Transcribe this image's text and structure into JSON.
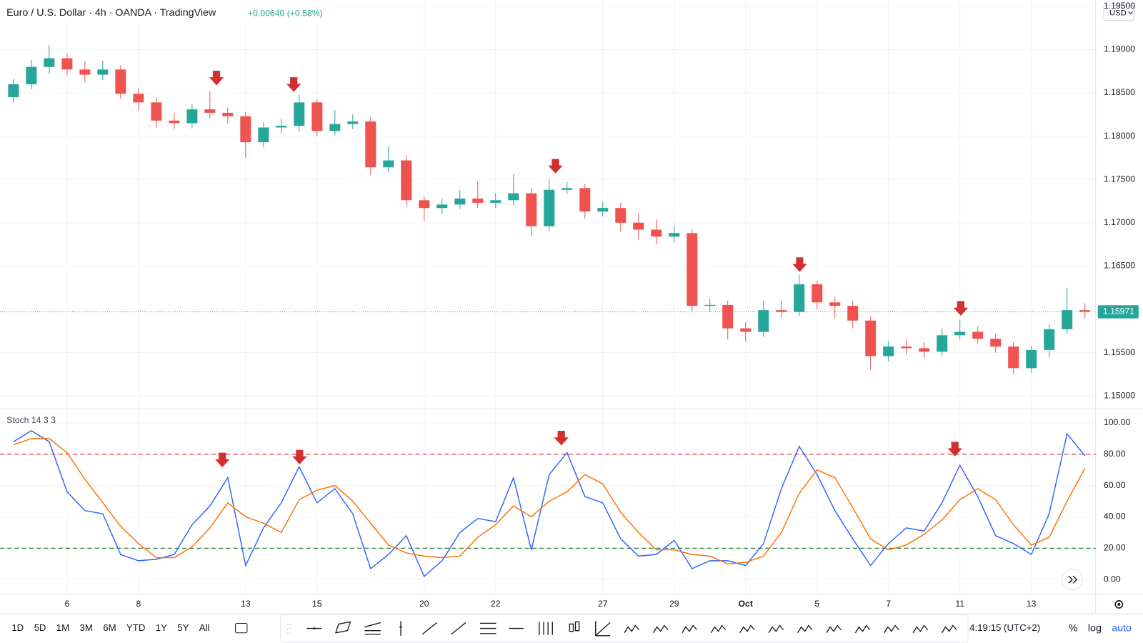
{
  "chart_data": [
    {
      "type": "candlestick",
      "title": "Euro / U.S. Dollar · 4h · OANDA · TradingView",
      "subtitle": "+0.00640 (+0.58%)",
      "currency": "USD",
      "up_color": "#26a69a",
      "down_color": "#ef5350",
      "xlim": [
        -0.755,
        60.6
      ],
      "xticks": [
        {
          "value": 3,
          "label": "6"
        },
        {
          "value": 7,
          "label": "8"
        },
        {
          "value": 13,
          "label": "13"
        },
        {
          "value": 17,
          "label": "15"
        },
        {
          "value": 23,
          "label": "20"
        },
        {
          "value": 27,
          "label": "22"
        },
        {
          "value": 33,
          "label": "27"
        },
        {
          "value": 37,
          "label": "29"
        },
        {
          "value": 41,
          "label": "Oct"
        },
        {
          "value": 45,
          "label": "5"
        },
        {
          "value": 49,
          "label": "7"
        },
        {
          "value": 53,
          "label": "11"
        },
        {
          "value": 57,
          "label": "13"
        }
      ],
      "ylim": [
        1.14857,
        1.19573
      ],
      "yticks": [
        {
          "value": 1.15,
          "label": "1.15000"
        },
        {
          "value": 1.155,
          "label": "1.15500"
        },
        {
          "value": 1.16,
          "label": "1.16000"
        },
        {
          "value": 1.165,
          "label": "1.16500"
        },
        {
          "value": 1.17,
          "label": "1.17000"
        },
        {
          "value": 1.175,
          "label": "1.17500"
        },
        {
          "value": 1.18,
          "label": "1.18000"
        },
        {
          "value": 1.185,
          "label": "1.18500"
        },
        {
          "value": 1.19,
          "label": "1.19000"
        },
        {
          "value": 1.195,
          "label": "1.19500"
        }
      ],
      "last_price": 1.15971,
      "open": [
        1.1845,
        1.186,
        1.188,
        1.189,
        1.1877,
        1.1871,
        1.1877,
        1.1849,
        1.1839,
        1.1818,
        1.1815,
        1.1831,
        1.1827,
        1.1823,
        1.1793,
        1.181,
        1.1812,
        1.1839,
        1.1806,
        1.1814,
        1.1817,
        1.1764,
        1.1772,
        1.1726,
        1.1717,
        1.1721,
        1.1728,
        1.1723,
        1.1726,
        1.1734,
        1.1696,
        1.1738,
        1.174,
        1.1713,
        1.1717,
        1.17,
        1.1692,
        1.1684,
        1.1688,
        1.1604,
        1.1605,
        1.1578,
        1.1574,
        1.1599,
        1.1597,
        1.1629,
        1.1608,
        1.1604,
        1.1587,
        1.1546,
        1.1557,
        1.1555,
        1.1551,
        1.157,
        1.1574,
        1.1566,
        1.1557,
        1.1532,
        1.1553,
        1.1577,
        1.1599
      ],
      "high": [
        1.1866,
        1.1888,
        1.1905,
        1.1896,
        1.1887,
        1.1887,
        1.1882,
        1.1855,
        1.1845,
        1.1827,
        1.1837,
        1.1852,
        1.1833,
        1.1828,
        1.1816,
        1.182,
        1.1848,
        1.1843,
        1.183,
        1.1825,
        1.1822,
        1.1788,
        1.1778,
        1.173,
        1.1728,
        1.1738,
        1.1748,
        1.1734,
        1.1756,
        1.174,
        1.175,
        1.1747,
        1.1745,
        1.1724,
        1.1723,
        1.171,
        1.1704,
        1.1696,
        1.1692,
        1.1612,
        1.161,
        1.1585,
        1.161,
        1.161,
        1.164,
        1.1633,
        1.1614,
        1.161,
        1.1592,
        1.1563,
        1.1566,
        1.1562,
        1.1578,
        1.1588,
        1.158,
        1.1572,
        1.1562,
        1.1558,
        1.1582,
        1.1625,
        1.1607
      ],
      "low": [
        1.1839,
        1.1854,
        1.1872,
        1.187,
        1.1862,
        1.1865,
        1.1843,
        1.183,
        1.181,
        1.1808,
        1.1809,
        1.182,
        1.1815,
        1.1775,
        1.1787,
        1.1803,
        1.1805,
        1.18,
        1.1801,
        1.1808,
        1.1755,
        1.1758,
        1.172,
        1.1702,
        1.171,
        1.1716,
        1.1717,
        1.1717,
        1.172,
        1.1685,
        1.169,
        1.1733,
        1.1705,
        1.1707,
        1.169,
        1.168,
        1.1675,
        1.1677,
        1.1598,
        1.1597,
        1.1565,
        1.1563,
        1.1568,
        1.159,
        1.1592,
        1.16,
        1.159,
        1.1578,
        1.153,
        1.154,
        1.1548,
        1.1544,
        1.1546,
        1.1565,
        1.156,
        1.155,
        1.1525,
        1.1527,
        1.1545,
        1.1572,
        1.159
      ],
      "close": [
        1.186,
        1.188,
        1.189,
        1.1877,
        1.1871,
        1.1877,
        1.1849,
        1.1839,
        1.1818,
        1.1815,
        1.1831,
        1.1827,
        1.1823,
        1.1793,
        1.181,
        1.1812,
        1.1839,
        1.1806,
        1.1814,
        1.1817,
        1.1764,
        1.1772,
        1.1726,
        1.1717,
        1.1721,
        1.1728,
        1.1723,
        1.1726,
        1.1734,
        1.1696,
        1.1738,
        1.174,
        1.1713,
        1.1717,
        1.17,
        1.1692,
        1.1684,
        1.1688,
        1.1604,
        1.1605,
        1.1578,
        1.1574,
        1.1599,
        1.1597,
        1.1629,
        1.1608,
        1.1604,
        1.1587,
        1.1546,
        1.1557,
        1.1555,
        1.1551,
        1.157,
        1.1574,
        1.1566,
        1.1557,
        1.1532,
        1.1553,
        1.1577,
        1.1599,
        1.15971
      ]
    },
    {
      "type": "line",
      "title": "Stoch 14 3 3",
      "xlim": [
        -0.755,
        60.6
      ],
      "ylim": [
        -9.3,
        108.4
      ],
      "yticks": [
        {
          "value": 0,
          "label": "0.00"
        },
        {
          "value": 20,
          "label": "20.00"
        },
        {
          "value": 40,
          "label": "40.00"
        },
        {
          "value": 60,
          "label": "60.00"
        },
        {
          "value": 80,
          "label": "80.00"
        },
        {
          "value": 100,
          "label": "100.00"
        }
      ],
      "bands": [
        {
          "value": 80,
          "color": "#f23645"
        },
        {
          "value": 20,
          "color": "#2e7d32"
        }
      ],
      "series": [
        {
          "color": "#2962ff",
          "values": [
            88,
            95,
            88,
            56,
            44,
            42,
            16,
            12,
            13,
            16,
            35,
            47,
            65,
            9,
            33,
            49,
            72,
            49,
            58,
            42,
            7,
            16,
            28,
            2,
            12,
            30,
            39,
            37,
            65,
            19,
            67,
            81,
            53,
            49,
            26,
            15,
            16,
            25,
            7,
            12,
            12,
            9,
            23,
            58,
            85,
            67,
            44,
            26,
            9,
            23,
            33,
            31,
            49,
            73,
            53,
            28,
            23,
            16,
            42,
            93,
            79
          ]
        },
        {
          "color": "#ff6d00",
          "values": [
            86,
            90,
            90,
            81,
            64,
            49,
            34,
            23,
            14,
            14,
            21,
            33,
            49,
            40,
            36,
            30,
            51,
            57,
            60,
            50,
            36,
            22,
            17,
            15,
            14,
            15,
            27,
            35,
            47,
            40,
            50,
            56,
            67,
            61,
            43,
            30,
            19,
            19,
            16,
            15,
            10,
            11,
            15,
            30,
            55,
            70,
            65,
            46,
            26,
            19,
            22,
            29,
            38,
            51,
            58,
            51,
            35,
            22,
            27,
            50,
            71
          ]
        }
      ]
    },
    {
      "type": "toolbar",
      "ranges": [
        "1D",
        "5D",
        "1M",
        "3M",
        "6M",
        "YTD",
        "1Y",
        "5Y",
        "All"
      ],
      "clock": "4:19:15 (UTC+2)",
      "scale_buttons": [
        "%",
        "log",
        "auto"
      ]
    }
  ]
}
